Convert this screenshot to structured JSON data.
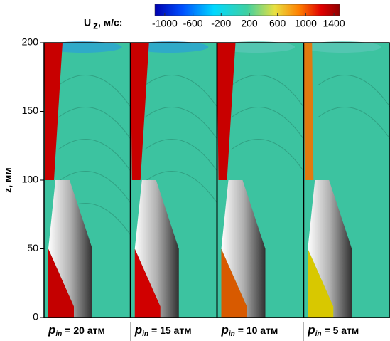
{
  "chart_data": {
    "type": "image-panels",
    "colorbar": {
      "label": "U",
      "label_sub": "z",
      "label_unit": ", м/с:",
      "lim": [
        -1140,
        1480
      ],
      "ticks": [
        -1000,
        -600,
        -200,
        200,
        600,
        1000,
        1400
      ]
    },
    "ylabel": "z, мм",
    "ylim": [
      0,
      200
    ],
    "yticks": [
      0,
      50,
      100,
      150,
      200
    ],
    "panels": [
      {
        "var": "p",
        "sub": "in",
        "text": "= 20 атм",
        "color": "#c40000"
      },
      {
        "var": "p",
        "sub": "in",
        "text": "= 15 атм",
        "color": "#d00000"
      },
      {
        "var": "p",
        "sub": "in",
        "text": "= 10 атм",
        "color": "#d85a00"
      },
      {
        "var": "p",
        "sub": "in",
        "text": "= 5 атм",
        "color": "#d8c800"
      }
    ]
  }
}
